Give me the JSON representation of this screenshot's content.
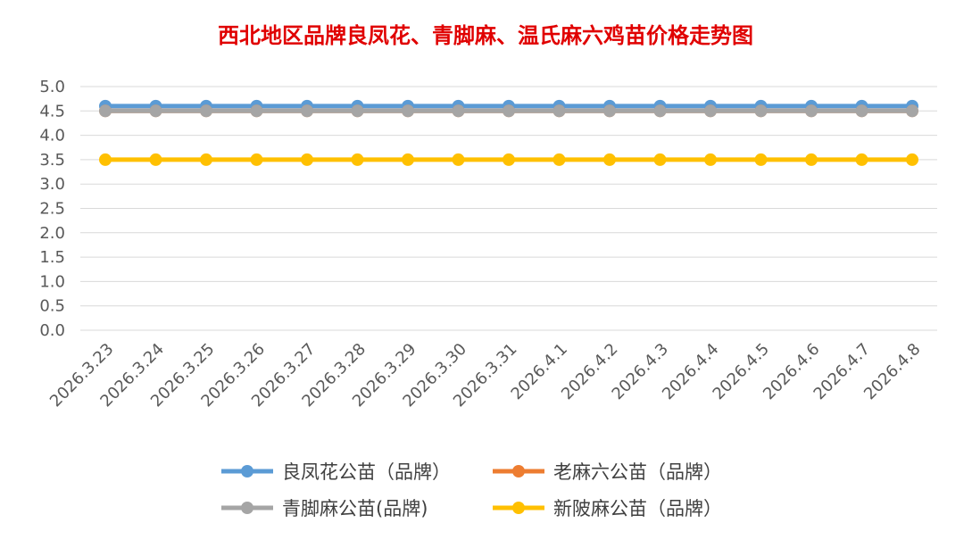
{
  "chart_data": {
    "type": "line",
    "title": "西北地区品牌良凤花、青脚麻、温氏麻六鸡苗价格走势图",
    "xlabel": "",
    "ylabel": "",
    "ylim": [
      0,
      5
    ],
    "y_ticks": [
      "0.0",
      "0.5",
      "1.0",
      "1.5",
      "2.0",
      "2.5",
      "3.0",
      "3.5",
      "4.0",
      "4.5",
      "5.0"
    ],
    "grid": true,
    "legend_position": "bottom",
    "categories": [
      "2026.3.23",
      "2026.3.24",
      "2026.3.25",
      "2026.3.26",
      "2026.3.27",
      "2026.3.28",
      "2026.3.29",
      "2026.3.30",
      "2026.3.31",
      "2026.4.1",
      "2026.4.2",
      "2026.4.3",
      "2026.4.4",
      "2026.4.5",
      "2026.4.6",
      "2026.4.7",
      "2026.4.8"
    ],
    "series": [
      {
        "name": "良凤花公苗（品牌）",
        "color": "#5B9BD5",
        "values": [
          4.6,
          4.6,
          4.6,
          4.6,
          4.6,
          4.6,
          4.6,
          4.6,
          4.6,
          4.6,
          4.6,
          4.6,
          4.6,
          4.6,
          4.6,
          4.6,
          4.6
        ]
      },
      {
        "name": "老麻六公苗（品牌）",
        "color": "#ED7D31",
        "values": [
          4.5,
          4.5,
          4.5,
          4.5,
          4.5,
          4.5,
          4.5,
          4.5,
          4.5,
          4.5,
          4.5,
          4.5,
          4.5,
          4.5,
          4.5,
          4.5,
          4.5
        ]
      },
      {
        "name": "青脚麻公苗(品牌)",
        "color": "#A5A5A5",
        "values": [
          4.5,
          4.5,
          4.5,
          4.5,
          4.5,
          4.5,
          4.5,
          4.5,
          4.5,
          4.5,
          4.5,
          4.5,
          4.5,
          4.5,
          4.5,
          4.5,
          4.5
        ]
      },
      {
        "name": "新陂麻公苗（品牌）",
        "color": "#FFC000",
        "values": [
          3.5,
          3.5,
          3.5,
          3.5,
          3.5,
          3.5,
          3.5,
          3.5,
          3.5,
          3.5,
          3.5,
          3.5,
          3.5,
          3.5,
          3.5,
          3.5,
          3.5
        ]
      }
    ],
    "colors": {
      "title": "#E00000",
      "grid": "#D9D9D9",
      "axis_text": "#595959",
      "legend_text": "#404040"
    }
  }
}
